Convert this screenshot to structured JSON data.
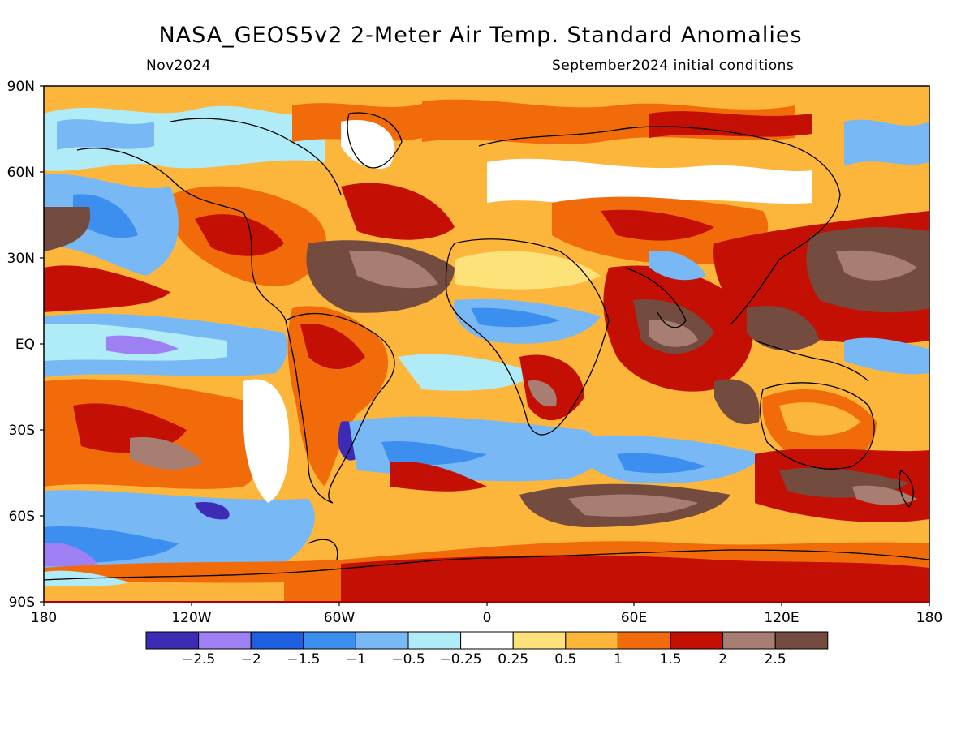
{
  "title": "NASA_GEOS5v2 2-Meter Air Temp. Standard Anomalies",
  "subtitle_left": "Nov2024",
  "subtitle_right": "September2024 initial conditions",
  "lat_labels": [
    "90N",
    "60N",
    "30N",
    "EQ",
    "30S",
    "60S",
    "90S"
  ],
  "lon_labels": [
    "180",
    "120W",
    "60W",
    "0",
    "60E",
    "120E",
    "180"
  ],
  "colorbar": {
    "colors": [
      "#3d2bb5",
      "#9c80f4",
      "#1e60e0",
      "#3c8fee",
      "#78b8f5",
      "#b0ecf8",
      "#ffffff",
      "#fde27a",
      "#fdb63c",
      "#f26b0a",
      "#c40f05",
      "#a87e72",
      "#734b3f"
    ],
    "labels": [
      "-2.5",
      "-2",
      "-1.5",
      "-1",
      "-0.5",
      "-0.25",
      "0.25",
      "0.5",
      "1",
      "1.5",
      "2",
      "2.5"
    ]
  }
}
